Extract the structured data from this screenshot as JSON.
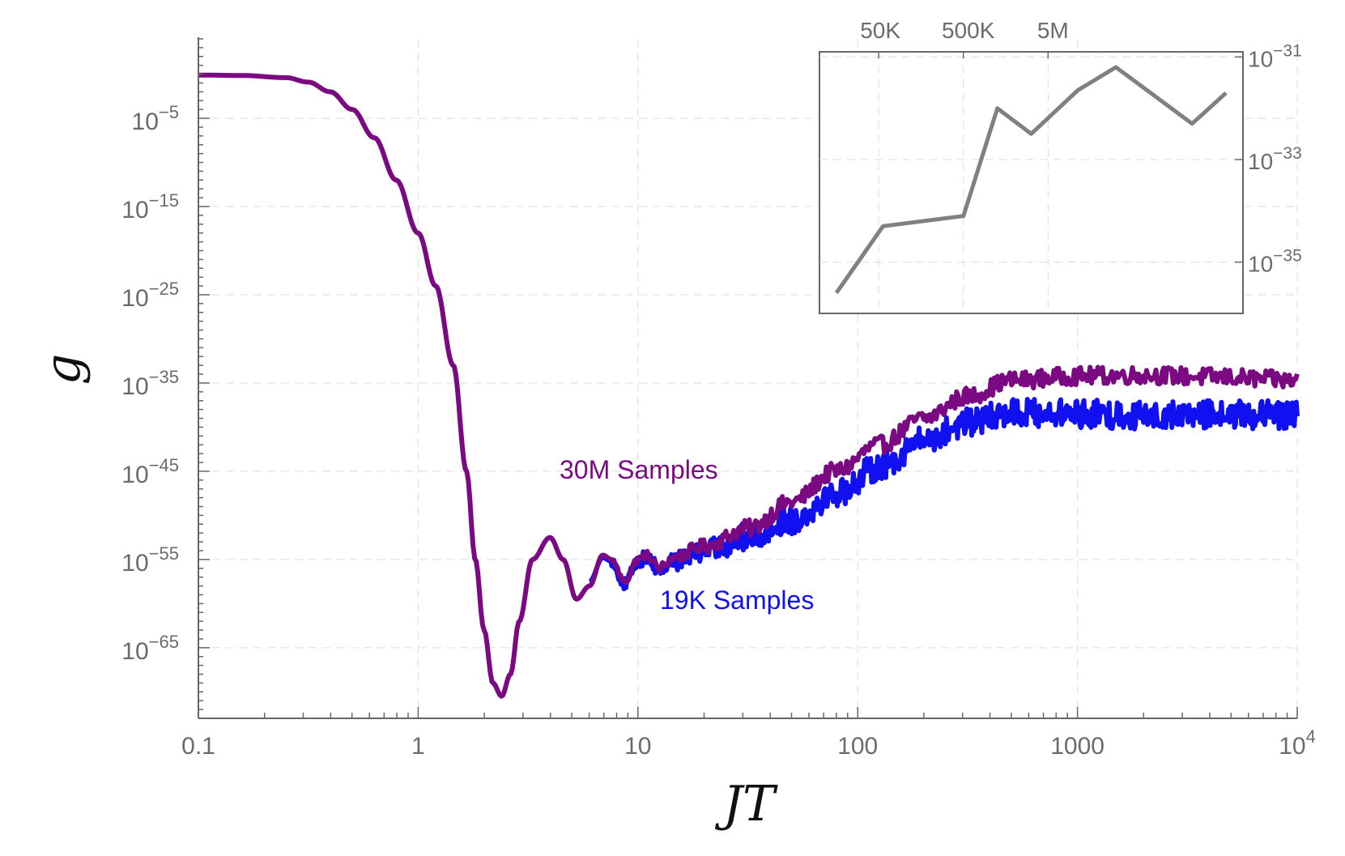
{
  "chart_data": [
    {
      "type": "line",
      "xlabel": "JT",
      "ylabel": "g",
      "xscale": "log",
      "yscale": "log",
      "xlim": [
        0.1,
        10000
      ],
      "ylim_exponent": [
        -73,
        4
      ],
      "grid": true,
      "x_ticks": [
        {
          "value": 0.1,
          "label": "0.1"
        },
        {
          "value": 1,
          "label": "1"
        },
        {
          "value": 10,
          "label": "10"
        },
        {
          "value": 100,
          "label": "100"
        },
        {
          "value": 1000,
          "label": "1000"
        },
        {
          "value": 10000,
          "label_base": "10",
          "label_exp": "4"
        }
      ],
      "y_ticks": [
        {
          "exponent": -5,
          "base": "10",
          "exp": "−5"
        },
        {
          "exponent": -15,
          "base": "10",
          "exp": "−15"
        },
        {
          "exponent": -25,
          "base": "10",
          "exp": "−25"
        },
        {
          "exponent": -35,
          "base": "10",
          "exp": "−35"
        },
        {
          "exponent": -45,
          "base": "10",
          "exp": "−45"
        },
        {
          "exponent": -55,
          "base": "10",
          "exp": "−55"
        },
        {
          "exponent": -65,
          "base": "10",
          "exp": "−65"
        }
      ],
      "series": [
        {
          "name": "30M Samples",
          "color": "#7b0a82",
          "anchors_log10x_vs_exponent": [
            [
              -1.0,
              -0.1
            ],
            [
              -0.8,
              -0.15
            ],
            [
              -0.6,
              -0.4
            ],
            [
              -0.5,
              -0.9
            ],
            [
              -0.4,
              -2.0
            ],
            [
              -0.3,
              -4.0
            ],
            [
              -0.2,
              -7.2
            ],
            [
              -0.1,
              -12.0
            ],
            [
              0.0,
              -18.0
            ],
            [
              0.08,
              -24.0
            ],
            [
              0.16,
              -33.0
            ],
            [
              0.22,
              -45.0
            ],
            [
              0.26,
              -55.0
            ],
            [
              0.3,
              -63.0
            ],
            [
              0.34,
              -69.0
            ],
            [
              0.38,
              -70.5
            ],
            [
              0.42,
              -68.0
            ],
            [
              0.46,
              -62.0
            ],
            [
              0.52,
              -55.0
            ],
            [
              0.6,
              -52.5
            ],
            [
              0.66,
              -55.0
            ],
            [
              0.72,
              -59.5
            ],
            [
              0.78,
              -58.0
            ],
            [
              0.84,
              -54.5
            ],
            [
              0.88,
              -55.0
            ],
            [
              0.94,
              -57.5
            ],
            [
              1.0,
              -55.0
            ],
            [
              1.04,
              -54.5
            ],
            [
              1.1,
              -56.0
            ],
            [
              1.16,
              -54.8
            ],
            [
              1.3,
              -53.5
            ],
            [
              1.5,
              -51.5
            ],
            [
              1.7,
              -48.5
            ],
            [
              1.9,
              -45.0
            ],
            [
              2.1,
              -42.0
            ],
            [
              2.3,
              -39.0
            ],
            [
              2.5,
              -36.5
            ],
            [
              2.7,
              -34.7
            ],
            [
              3.0,
              -34.2
            ],
            [
              3.3,
              -34.1
            ],
            [
              3.6,
              -34.3
            ],
            [
              4.0,
              -34.7
            ]
          ],
          "noise_from_log10x": 0.9,
          "noise_amplitude": 1.0
        },
        {
          "name": "19K Samples",
          "color": "#1010f0",
          "anchors_log10x_vs_exponent": [
            [
              0.78,
              -57.5
            ],
            [
              0.84,
              -54.8
            ],
            [
              0.88,
              -55.2
            ],
            [
              0.94,
              -57.8
            ],
            [
              1.0,
              -55.2
            ],
            [
              1.04,
              -54.7
            ],
            [
              1.1,
              -56.2
            ],
            [
              1.16,
              -55.2
            ],
            [
              1.3,
              -54.0
            ],
            [
              1.5,
              -52.5
            ],
            [
              1.7,
              -50.5
            ],
            [
              1.9,
              -47.5
            ],
            [
              2.1,
              -44.5
            ],
            [
              2.3,
              -41.5
            ],
            [
              2.5,
              -39.5
            ],
            [
              2.7,
              -38.3
            ],
            [
              3.0,
              -38.5
            ],
            [
              3.3,
              -38.7
            ],
            [
              3.6,
              -38.6
            ],
            [
              4.0,
              -38.6
            ]
          ],
          "noise_from_log10x": 0.88,
          "noise_amplitude": 1.6
        }
      ],
      "labels": {
        "purple": "30M Samples",
        "blue": "19K Samples"
      }
    },
    {
      "type": "line",
      "title": "",
      "color": "#808080",
      "x_ticks": [
        "50K",
        "500K",
        "5M"
      ],
      "y_ticks": [
        {
          "exponent": -31,
          "base": "10",
          "exp": "−31"
        },
        {
          "exponent": -33,
          "base": "10",
          "exp": "−33"
        },
        {
          "exponent": -35,
          "base": "10",
          "exp": "−35"
        }
      ],
      "points_log10samples_vs_exponent": [
        [
          4.2,
          -35.6
        ],
        [
          4.75,
          -34.3
        ],
        [
          5.7,
          -34.1
        ],
        [
          6.1,
          -32.0
        ],
        [
          6.5,
          -32.5
        ],
        [
          7.05,
          -31.65
        ],
        [
          7.5,
          -31.2
        ],
        [
          8.4,
          -32.3
        ],
        [
          8.8,
          -31.7
        ]
      ]
    }
  ]
}
